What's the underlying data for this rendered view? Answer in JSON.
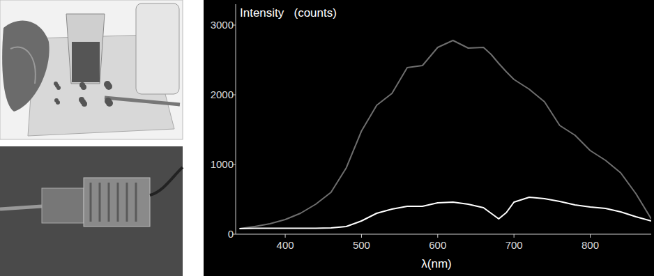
{
  "chart_data": {
    "type": "line",
    "y_label": "Intensity   (counts)",
    "x_label": "λ(nm)",
    "x": [
      340,
      360,
      380,
      400,
      420,
      440,
      460,
      480,
      500,
      520,
      540,
      560,
      580,
      600,
      620,
      640,
      660,
      670,
      680,
      690,
      700,
      720,
      740,
      760,
      780,
      800,
      820,
      840,
      860,
      880
    ],
    "series": [
      {
        "color": "#6e6e6e",
        "values": [
          80,
          110,
          150,
          210,
          300,
          430,
          600,
          950,
          1480,
          1850,
          2020,
          2390,
          2420,
          2680,
          2780,
          2670,
          2680,
          2580,
          2450,
          2330,
          2220,
          2080,
          1900,
          1560,
          1420,
          1200,
          1060,
          880,
          580,
          220
        ]
      },
      {
        "color": "#ffffff",
        "values": [
          80,
          85,
          85,
          85,
          85,
          85,
          90,
          110,
          190,
          300,
          360,
          400,
          400,
          450,
          460,
          430,
          380,
          300,
          220,
          310,
          460,
          530,
          510,
          470,
          420,
          390,
          370,
          320,
          250,
          190
        ]
      }
    ],
    "xlim": [
      335,
      880
    ],
    "ylim": [
      0,
      3300
    ],
    "xticks": [
      400,
      500,
      600,
      700,
      800
    ],
    "yticks": [
      0,
      1000,
      2000,
      3000
    ],
    "grid": false
  }
}
